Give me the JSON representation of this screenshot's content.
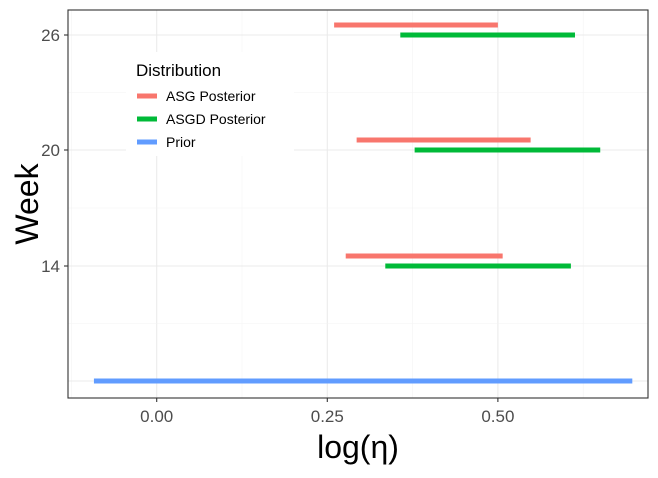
{
  "chart_data": {
    "type": "range",
    "xlabel": "log(η)",
    "ylabel": "Week",
    "xlim": [
      -0.13,
      0.72
    ],
    "x_ticks": [
      0.0,
      0.25,
      0.5
    ],
    "x_tick_labels": [
      "0.00",
      "0.25",
      "0.50"
    ],
    "y_ticks": [
      26,
      20,
      14
    ],
    "y_tick_labels": [
      "26",
      "20",
      "14"
    ],
    "grid": true,
    "legend": {
      "title": "Distribution",
      "position": "top-left",
      "entries": [
        {
          "name": "ASG Posterior",
          "color": "#F8766D"
        },
        {
          "name": "ASGD Posterior",
          "color": "#00BA38"
        },
        {
          "name": "Prior",
          "color": "#619CFF"
        }
      ]
    },
    "rows": [
      {
        "label": "26",
        "series": "ASG Posterior",
        "x_start": 0.26,
        "x_end": 0.5
      },
      {
        "label": "26",
        "series": "ASGD Posterior",
        "x_start": 0.357,
        "x_end": 0.613
      },
      {
        "label": "20",
        "series": "ASG Posterior",
        "x_start": 0.293,
        "x_end": 0.548
      },
      {
        "label": "20",
        "series": "ASGD Posterior",
        "x_start": 0.378,
        "x_end": 0.65
      },
      {
        "label": "14",
        "series": "ASG Posterior",
        "x_start": 0.277,
        "x_end": 0.507
      },
      {
        "label": "14",
        "series": "ASGD Posterior",
        "x_start": 0.335,
        "x_end": 0.607
      },
      {
        "label": "",
        "series": "Prior",
        "x_start": -0.092,
        "x_end": 0.697
      }
    ]
  }
}
